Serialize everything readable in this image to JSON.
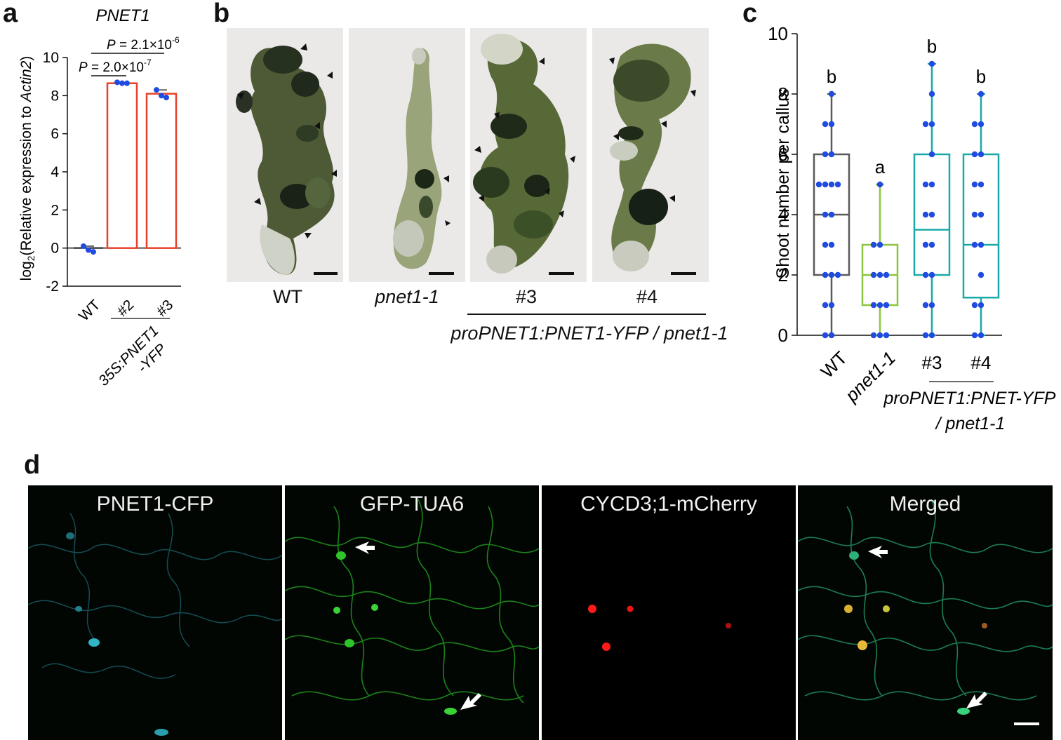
{
  "panels": {
    "a": {
      "letter": "a",
      "title": "PNET1",
      "ylabel_prefix": "log",
      "ylabel_sub": "2",
      "ylabel_mid": "(Relative expression to ",
      "ylabel_gene": "Actin2",
      "ylabel_end": ")",
      "p_values": [
        {
          "prefix": "P",
          "text": " = 2.0×10",
          "exp": "-7"
        },
        {
          "prefix": "P",
          "text": " = 2.1×10",
          "exp": "-6"
        }
      ],
      "group_label_line1": "35S:PNET1",
      "group_label_line2": "-YFP"
    },
    "b": {
      "letter": "b",
      "labels": [
        "WT",
        "pnet1-1",
        "#3",
        "#4"
      ],
      "group_label": "proPNET1:PNET1-YFP / pnet1-1"
    },
    "c": {
      "letter": "c",
      "group_label_line1": "proPNET1:PNET-YFP",
      "group_label_line2": "/ pnet1-1"
    },
    "d": {
      "letter": "d",
      "channels": [
        "PNET1-CFP",
        "GFP-TUA6",
        "CYCD3;1-mCherry",
        "Merged"
      ]
    }
  },
  "colors": {
    "bar_edge": "#e8412a",
    "point": "#1f4be0",
    "box_wt": "#5a5a5a",
    "box_pnet": "#8cc63f",
    "box_comp": "#1aa9a8",
    "cfp": "#2fb5c5",
    "gfp": "#2ec52a",
    "mcherry": "#ff1a1a"
  },
  "chart_data": [
    {
      "type": "bar",
      "title": "PNET1",
      "categories": [
        "WT",
        "#2",
        "#3"
      ],
      "values": [
        0.0,
        8.65,
        8.1
      ],
      "points": [
        [
          0.1,
          -0.1,
          -0.2
        ],
        [
          8.7,
          8.65,
          8.65
        ],
        [
          8.3,
          8.0,
          7.9
        ]
      ],
      "ylabel": "log2(Relative expression to Actin2)",
      "ylim": [
        -2,
        10
      ],
      "yticks": [
        -2,
        0,
        2,
        4,
        6,
        8,
        10
      ],
      "grid": false
    },
    {
      "type": "box",
      "ylabel": "Shoot number per callus",
      "ylim": [
        0,
        10
      ],
      "yticks": [
        0,
        2,
        4,
        6,
        8,
        10
      ],
      "categories": [
        "WT",
        "pnet1-1",
        "#3",
        "#4"
      ],
      "series": [
        {
          "name": "WT",
          "min": 0,
          "q1": 2,
          "median": 4,
          "q3": 6,
          "max": 8,
          "letter": "b",
          "points": [
            0,
            0,
            1,
            1,
            2,
            2,
            2,
            3,
            3,
            4,
            4,
            5,
            5,
            5,
            5,
            6,
            6,
            7,
            7,
            8
          ]
        },
        {
          "name": "pnet1-1",
          "min": 0,
          "q1": 1,
          "median": 2,
          "q3": 3,
          "max": 5,
          "letter": "a",
          "points": [
            0,
            0,
            0,
            1,
            1,
            1,
            2,
            2,
            2,
            3,
            3,
            5
          ]
        },
        {
          "name": "#3",
          "min": 0,
          "q1": 2,
          "median": 3.5,
          "q3": 6,
          "max": 9,
          "letter": "b",
          "points": [
            0,
            0,
            1,
            1,
            2,
            2,
            3,
            3,
            4,
            4,
            5,
            5,
            6,
            7,
            7,
            8,
            9
          ]
        },
        {
          "name": "#4",
          "min": 0,
          "q1": 1.25,
          "median": 3,
          "q3": 6,
          "max": 8,
          "letter": "b",
          "points": [
            0,
            0,
            1,
            1,
            2,
            3,
            3,
            4,
            4,
            5,
            5,
            6,
            6,
            7,
            7,
            8
          ]
        }
      ]
    }
  ]
}
